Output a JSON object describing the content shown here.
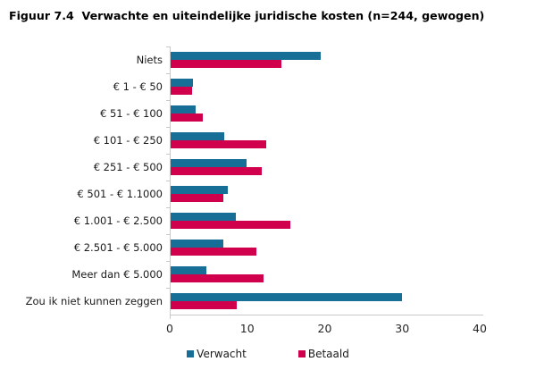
{
  "title": "Figuur 7.4  Verwachte en uiteindelijke juridische kosten (n=244, gewogen)",
  "chart_data": {
    "type": "bar",
    "orientation": "horizontal",
    "title": "Figuur 7.4  Verwachte en uiteindelijke juridische kosten (n=244, gewogen)",
    "categories": [
      "Niets",
      "€ 1 - € 50",
      "€ 51 - € 100",
      "€ 101 - € 250",
      "€ 251 - € 500",
      "€ 501 - € 1.1000",
      "€ 1.001 - € 2.500",
      "€ 2.501 - € 5.000",
      "Meer dan € 5.000",
      "Zou ik niet kunnen zeggen"
    ],
    "series": [
      {
        "name": "Verwacht",
        "color": "#176e96",
        "values": [
          19.5,
          2.9,
          3.2,
          6.9,
          9.9,
          7.4,
          8.5,
          6.8,
          4.6,
          30.0
        ]
      },
      {
        "name": "Betaald",
        "color": "#d0004c",
        "values": [
          14.4,
          2.8,
          4.2,
          12.4,
          11.8,
          6.8,
          15.5,
          11.1,
          12.1,
          8.6
        ]
      }
    ],
    "xlabel": "",
    "ylabel": "",
    "xlim": [
      0,
      40
    ],
    "xticks": [
      0,
      10,
      20,
      30,
      40
    ],
    "grid": false,
    "legend_position": "bottom",
    "axis_color": "#c9c9c9",
    "background_color": "#ffffff"
  }
}
